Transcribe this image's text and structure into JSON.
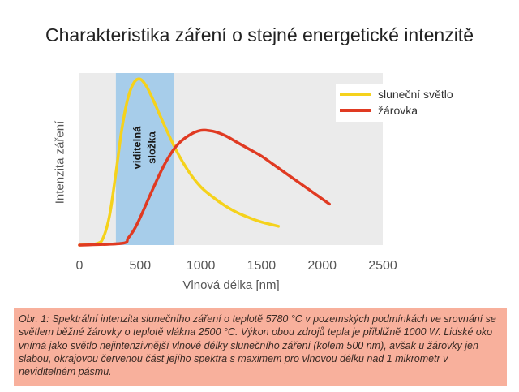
{
  "chart_data": {
    "type": "line",
    "title": "Charakteristika záření o stejné energetické intenzitě",
    "xlabel": "Vlnová délka [nm]",
    "ylabel": "Intenzita záření",
    "xlim": [
      0,
      2500
    ],
    "ylim": [
      0,
      1
    ],
    "xticks": [
      0,
      500,
      1000,
      1500,
      2000,
      2500
    ],
    "x_tick_labels": [
      "0",
      "500",
      "1000",
      "1500",
      "2000",
      "2500"
    ],
    "grid": false,
    "legend": "top-right",
    "highlight": {
      "range": [
        300,
        780
      ],
      "label_line1": "viditelná",
      "label_line2": "složka",
      "color": "#a7cdea"
    },
    "series": [
      {
        "name": "sluneční světlo",
        "color": "#f5d21c",
        "points": [
          [
            0,
            0
          ],
          [
            150,
            0.01
          ],
          [
            200,
            0.05
          ],
          [
            250,
            0.18
          ],
          [
            300,
            0.42
          ],
          [
            350,
            0.68
          ],
          [
            400,
            0.86
          ],
          [
            450,
            0.95
          ],
          [
            500,
            0.97
          ],
          [
            550,
            0.93
          ],
          [
            600,
            0.86
          ],
          [
            700,
            0.7
          ],
          [
            800,
            0.55
          ],
          [
            900,
            0.43
          ],
          [
            1000,
            0.34
          ],
          [
            1100,
            0.28
          ],
          [
            1200,
            0.23
          ],
          [
            1300,
            0.19
          ],
          [
            1400,
            0.16
          ],
          [
            1500,
            0.135
          ],
          [
            1640,
            0.11
          ]
        ]
      },
      {
        "name": "žárovka",
        "color": "#e03a22",
        "points": [
          [
            0,
            0
          ],
          [
            350,
            0.01
          ],
          [
            400,
            0.04
          ],
          [
            450,
            0.09
          ],
          [
            500,
            0.16
          ],
          [
            600,
            0.32
          ],
          [
            700,
            0.47
          ],
          [
            800,
            0.58
          ],
          [
            900,
            0.64
          ],
          [
            1000,
            0.67
          ],
          [
            1100,
            0.665
          ],
          [
            1200,
            0.64
          ],
          [
            1300,
            0.6
          ],
          [
            1400,
            0.56
          ],
          [
            1500,
            0.52
          ],
          [
            1600,
            0.47
          ],
          [
            1700,
            0.42
          ],
          [
            1800,
            0.37
          ],
          [
            1900,
            0.32
          ],
          [
            2000,
            0.27
          ],
          [
            2060,
            0.24
          ]
        ]
      }
    ]
  },
  "caption": "Obr. 1: Spektrální intenzita slunečního záření o teplotě 5780 °C v pozemských podmínkách ve srovnání se světlem běžné žárovky o teplotě vlákna 2500 °C. Výkon obou zdrojů tepla je přibližně 1000 W. Lidské oko vnímá jako světlo nejintenzivnější vlnové délky slunečního záření (kolem 500 nm), avšak u žárovky jen slabou, okrajovou červenou část jejího spektra s maximem pro vlnovou délku nad 1 mikrometr v neviditelném pásmu."
}
